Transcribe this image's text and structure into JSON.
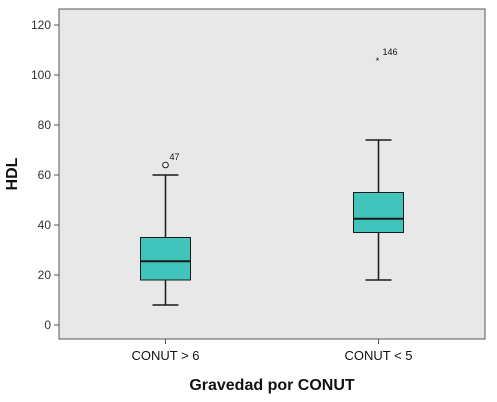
{
  "chart_data": {
    "type": "boxplot",
    "xlabel": "Gravedad por CONUT",
    "ylabel": "HDL",
    "ylim": [
      -5,
      125
    ],
    "yticks": [
      0,
      20,
      40,
      60,
      80,
      100,
      120
    ],
    "grid": false,
    "categories": [
      "CONUT > 6",
      "CONUT < 5"
    ],
    "boxes": [
      {
        "category": "CONUT > 6",
        "min": 8,
        "q1": 18,
        "median": 25.5,
        "q3": 35,
        "max": 60,
        "outliers": [
          {
            "label": "47",
            "value": 64,
            "marker": "circle"
          }
        ]
      },
      {
        "category": "CONUT < 5",
        "min": 18,
        "q1": 37,
        "median": 42.5,
        "q3": 53,
        "max": 74,
        "outliers": [
          {
            "label": "146",
            "value": 106,
            "marker": "star"
          }
        ]
      }
    ],
    "colors": {
      "plot_background": "#e8e8e8",
      "box_fill": "#40c4bc",
      "line": "#1a1a1a"
    }
  }
}
